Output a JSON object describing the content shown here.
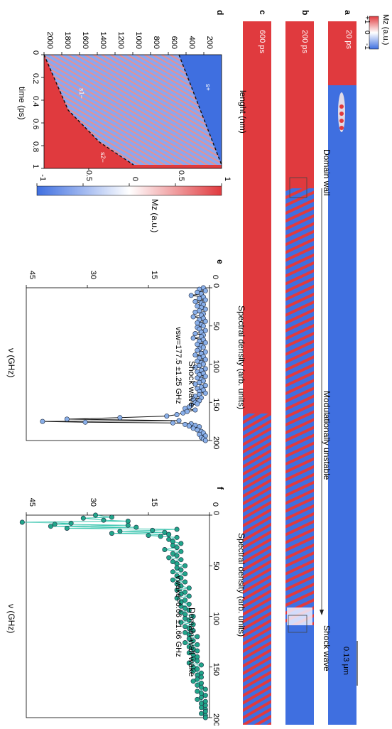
{
  "panels": {
    "a": {
      "letter": "a",
      "time": "20 ps"
    },
    "b": {
      "letter": "b",
      "time": "200 ps"
    },
    "c": {
      "letter": "c",
      "time": "600 ps"
    },
    "d": {
      "letter": "d"
    },
    "e": {
      "letter": "e"
    },
    "f": {
      "letter": "f"
    }
  },
  "annotations": {
    "domain_wall": "Domain wall",
    "modulationally_unstable": "Modulationally unstable",
    "shock_wave": "Shock wave",
    "scale_bar": "0.13 μm",
    "s_plus": "s+",
    "s1_minus": "s1−",
    "s2_minus": "s2−"
  },
  "top_colorbar": {
    "label": "Mz (a.u.)",
    "ticks": [
      "+1",
      "0",
      "-1"
    ]
  },
  "colors": {
    "red": "#e03a3e",
    "blue": "#3f6fe0",
    "e_marker": "#8ab0ea",
    "f_marker": "#21a68a"
  },
  "chart_data": [
    {
      "type": "heatmap",
      "panel": "d",
      "xlabel": "time (ps)",
      "ylabel": "lenght (nm)",
      "x_ticks": [
        "0",
        "0.2",
        "0.4",
        "0.6",
        "0.8",
        "1"
      ],
      "y_ticks": [
        "200",
        "400",
        "600",
        "800",
        "1000",
        "1200",
        "1400",
        "1600",
        "1800",
        "2000"
      ],
      "xlim": [
        0,
        1
      ],
      "ylim": [
        0,
        2000
      ],
      "colorbar": {
        "label": "Mz (a.u.)",
        "ticks": [
          "-1",
          "-0.5",
          "0",
          "0.5",
          "1"
        ],
        "range": [
          -1,
          1
        ]
      }
    },
    {
      "type": "line",
      "panel": "e",
      "title": "Shock wave",
      "annotation": "vsw=177.5 ±1.25 GHz",
      "xlabel": "ν (GHz)",
      "ylabel": "Spectral density (arb. units)",
      "x_ticks": [
        "0",
        "50",
        "100",
        "150",
        "200"
      ],
      "y_ticks": [
        "0",
        "15",
        "30",
        "45"
      ],
      "xlim": [
        0,
        200
      ],
      "ylim": [
        0,
        45
      ],
      "series": [
        {
          "x": [
            0,
            2,
            4,
            6,
            8,
            10,
            12,
            14,
            16,
            18,
            20,
            22,
            24,
            26,
            28,
            30,
            32,
            34,
            36,
            38,
            40,
            42,
            44,
            46,
            48,
            50,
            52,
            54,
            56,
            58,
            60,
            62,
            64,
            66,
            68,
            70,
            72,
            74,
            76,
            78,
            80,
            82,
            84,
            86,
            88,
            90,
            92,
            94,
            96,
            98,
            100,
            102,
            104,
            106,
            108,
            110,
            112,
            114,
            116,
            118,
            120,
            122,
            124,
            126,
            128,
            130,
            132,
            134,
            136,
            138,
            140,
            142,
            144,
            146,
            148,
            150,
            152,
            154,
            156,
            158,
            160,
            162,
            164,
            166,
            168,
            170,
            172,
            174,
            175,
            176,
            177,
            178,
            179,
            180,
            181,
            182,
            184,
            186,
            188,
            190,
            192,
            194,
            196,
            198,
            200
          ],
          "y": [
            1.5,
            2.5,
            1.0,
            3.0,
            2.0,
            4.5,
            1.5,
            2.5,
            1.0,
            3.5,
            2.0,
            1.5,
            3.0,
            2.0,
            1.0,
            2.5,
            3.5,
            1.5,
            2.0,
            4.0,
            1.5,
            2.5,
            1.0,
            3.0,
            2.0,
            1.5,
            3.0,
            2.5,
            1.0,
            2.0,
            3.5,
            1.5,
            2.0,
            4.0,
            1.5,
            2.5,
            1.0,
            3.0,
            2.0,
            1.5,
            2.5,
            3.0,
            1.0,
            2.0,
            3.5,
            1.5,
            2.5,
            1.0,
            3.0,
            2.0,
            1.5,
            2.5,
            3.5,
            1.0,
            2.0,
            3.0,
            1.5,
            2.5,
            1.0,
            3.0,
            2.0,
            1.5,
            2.5,
            3.5,
            1.0,
            2.0,
            3.0,
            1.5,
            2.5,
            1.0,
            2.5,
            3.5,
            2.0,
            4.0,
            2.5,
            3.5,
            3.0,
            4.5,
            5.0,
            6.0,
            3.5,
            5.5,
            6.5,
            8.0,
            10.5,
            22.0,
            35.0,
            7.5,
            41.0,
            30.5,
            9.0,
            4.5,
            6.0,
            3.5,
            5.0,
            2.5,
            4.0,
            3.0,
            2.0,
            1.5,
            2.5,
            1.0,
            2.0,
            1.5,
            1.0
          ]
        }
      ]
    },
    {
      "type": "line",
      "panel": "f",
      "title": "Domain-wall wake",
      "annotation": "vwake=6.66 ±1.66 GHz",
      "xlabel": "ν (GHz)",
      "ylabel": "Spectral density (arb. units)",
      "x_ticks": [
        "0",
        "50",
        "100",
        "150",
        "200"
      ],
      "y_ticks": [
        "0",
        "15",
        "30",
        "45"
      ],
      "xlim": [
        0,
        200
      ],
      "ylim": [
        0,
        45
      ],
      "series": [
        {
          "x": [
            0,
            2,
            3,
            5,
            6,
            7,
            8,
            9,
            10,
            11,
            12,
            13,
            14,
            15,
            16,
            17,
            18,
            19,
            20,
            21,
            22,
            24,
            26,
            28,
            30,
            32,
            34,
            36,
            38,
            40,
            42,
            44,
            46,
            48,
            50,
            52,
            54,
            56,
            58,
            60,
            62,
            64,
            66,
            68,
            70,
            72,
            74,
            76,
            78,
            80,
            82,
            84,
            86,
            88,
            90,
            92,
            94,
            96,
            98,
            100,
            102,
            104,
            106,
            108,
            110,
            112,
            114,
            116,
            118,
            120,
            122,
            124,
            126,
            128,
            130,
            132,
            134,
            136,
            138,
            140,
            142,
            144,
            146,
            148,
            150,
            152,
            154,
            156,
            158,
            160,
            162,
            164,
            166,
            168,
            170,
            172,
            174,
            176,
            178,
            180,
            182,
            184,
            186,
            188,
            190,
            192,
            194,
            196,
            198,
            200
          ],
          "y": [
            28,
            24,
            31,
            26,
            20,
            46,
            34,
            38,
            20,
            39,
            18,
            35,
            8,
            14,
            22,
            11,
            24,
            10,
            15,
            12,
            8,
            10,
            9,
            7,
            9,
            8,
            11,
            7,
            9,
            8,
            10,
            7,
            9,
            8,
            6,
            8,
            7,
            9,
            6,
            8,
            7,
            9,
            6,
            8,
            7,
            5,
            8,
            6,
            7,
            5,
            8,
            6,
            7,
            5,
            7,
            6,
            5,
            7,
            6,
            4,
            6,
            5,
            7,
            4,
            6,
            5,
            4,
            6,
            5,
            3,
            5,
            4,
            6,
            3,
            5,
            4,
            3,
            5,
            4,
            3,
            4,
            3,
            5,
            2,
            4,
            3,
            4,
            2,
            3,
            2,
            3,
            4,
            2,
            3,
            2,
            1,
            3,
            2,
            1,
            2,
            3,
            1,
            2,
            1,
            2,
            1,
            1,
            2,
            1,
            1
          ]
        }
      ]
    }
  ]
}
